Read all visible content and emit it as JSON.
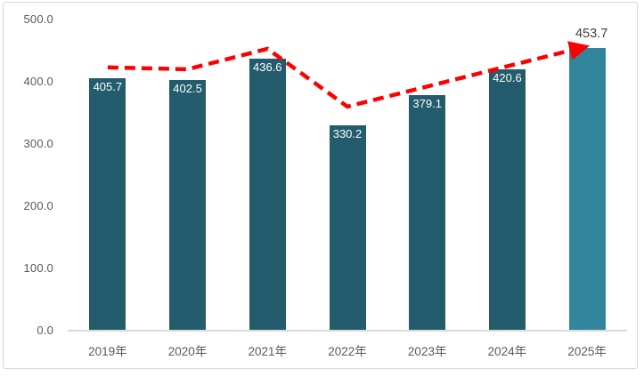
{
  "chart_data": {
    "type": "bar",
    "title": "",
    "categories": [
      "2019年",
      "2020年",
      "2021年",
      "2022年",
      "2023年",
      "2024年",
      "2025年"
    ],
    "values": [
      405.7,
      402.5,
      436.6,
      330.2,
      379.1,
      420.6,
      453.7
    ],
    "bar_labels": [
      "405.7",
      "402.5",
      "436.6",
      "330.2",
      "379.1",
      "420.6",
      "453.7"
    ],
    "highlight_index": 6,
    "ylim": [
      0,
      500
    ],
    "y_ticks": [
      "500.0",
      "400.0",
      "300.0",
      "200.0",
      "100.0",
      "0.0"
    ],
    "grid": false,
    "legend": "none",
    "colors": {
      "bar": "#235c6c",
      "bar_highlight": "#31869e",
      "label_inside": "#ffffff",
      "label_outside": "#404040",
      "axis_line": "#d9d9d9",
      "axis_text": "#595959",
      "trend": "#fe0000",
      "frame_border": "#d7d7d7"
    },
    "trend_line": {
      "style": "dashed-arrow",
      "description": "red dashed trend arrow across bar tops ending in arrowhead at 2025 bar",
      "values": [
        423,
        420,
        453,
        360,
        392.3,
        424.7,
        457
      ]
    }
  }
}
